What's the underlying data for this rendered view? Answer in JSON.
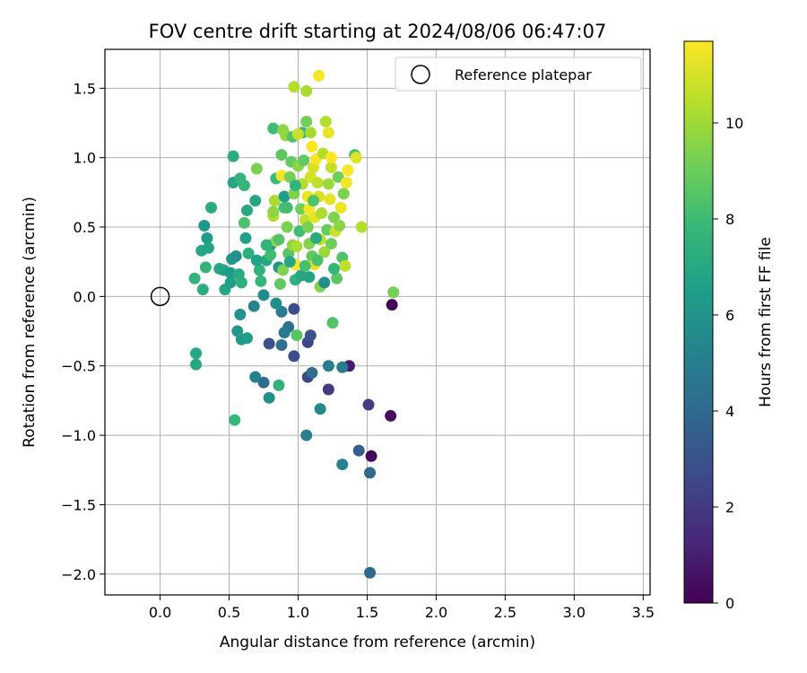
{
  "chart_data": {
    "type": "scatter",
    "title": "FOV centre drift starting at 2024/08/06 06:47:07",
    "xlabel": "Angular distance from reference (arcmin)",
    "ylabel": "Rotation from reference (arcmin)",
    "xlim": [
      -0.4,
      3.55
    ],
    "ylim": [
      -2.15,
      1.78
    ],
    "xticks": [
      "0.0",
      "0.5",
      "1.0",
      "1.5",
      "2.0",
      "2.5",
      "3.0",
      "3.5"
    ],
    "xtick_values": [
      0,
      0.5,
      1,
      1.5,
      2,
      2.5,
      3,
      3.5
    ],
    "yticks": [
      "1.5",
      "1.0",
      "0.5",
      "0.0",
      "−0.5",
      "−1.0",
      "−1.5",
      "−2.0"
    ],
    "ytick_values": [
      1.5,
      1.0,
      0.5,
      0.0,
      -0.5,
      -1.0,
      -1.5,
      -2.0
    ],
    "grid": true,
    "legend": {
      "label": "Reference platepar",
      "position": "top-right"
    },
    "reference_point": {
      "x": 0.0,
      "y": 0.0
    },
    "colorbar": {
      "label": "Hours from first FF file",
      "min": 0,
      "max": 11.7,
      "ticks": [
        "0",
        "2",
        "4",
        "6",
        "8",
        "10"
      ],
      "tick_values": [
        0,
        2,
        4,
        6,
        8,
        10
      ],
      "colormap": "viridis"
    },
    "points": [
      {
        "x": 1.53,
        "y": -1.15,
        "h": 0.2
      },
      {
        "x": 1.68,
        "y": -0.06,
        "h": 0.1
      },
      {
        "x": 1.67,
        "y": -0.86,
        "h": 0.4
      },
      {
        "x": 1.37,
        "y": -0.5,
        "h": 0.9
      },
      {
        "x": 1.51,
        "y": -0.78,
        "h": 2.1
      },
      {
        "x": 1.22,
        "y": -0.67,
        "h": 2.0
      },
      {
        "x": 1.07,
        "y": -0.58,
        "h": 2.5
      },
      {
        "x": 0.97,
        "y": -0.43,
        "h": 2.9
      },
      {
        "x": 1.07,
        "y": -0.33,
        "h": 2.5
      },
      {
        "x": 1.09,
        "y": -0.28,
        "h": 3.0
      },
      {
        "x": 0.79,
        "y": -0.34,
        "h": 2.9
      },
      {
        "x": 0.97,
        "y": -0.09,
        "h": 2.9
      },
      {
        "x": 1.44,
        "y": -1.11,
        "h": 3.5
      },
      {
        "x": 1.52,
        "y": -1.27,
        "h": 3.9
      },
      {
        "x": 1.52,
        "y": -1.99,
        "h": 3.9
      },
      {
        "x": 1.1,
        "y": -0.55,
        "h": 4.1
      },
      {
        "x": 0.88,
        "y": -0.35,
        "h": 4.3
      },
      {
        "x": 0.75,
        "y": -0.62,
        "h": 4.1
      },
      {
        "x": 1.32,
        "y": -0.51,
        "h": 4.9
      },
      {
        "x": 1.22,
        "y": -0.5,
        "h": 5.0
      },
      {
        "x": 1.06,
        "y": -1.0,
        "h": 5.0
      },
      {
        "x": 1.32,
        "y": -1.21,
        "h": 5.2
      },
      {
        "x": 1.16,
        "y": -0.81,
        "h": 5.5
      },
      {
        "x": 0.69,
        "y": -0.58,
        "h": 5.1
      },
      {
        "x": 0.93,
        "y": -0.22,
        "h": 4.4
      },
      {
        "x": 0.9,
        "y": -0.26,
        "h": 4.8
      },
      {
        "x": 0.88,
        "y": -0.11,
        "h": 4.9
      },
      {
        "x": 0.84,
        "y": -0.05,
        "h": 5.6
      },
      {
        "x": 0.68,
        "y": -0.07,
        "h": 5.3
      },
      {
        "x": 0.79,
        "y": -0.73,
        "h": 5.9
      },
      {
        "x": 0.75,
        "y": 0.01,
        "h": 5.7
      },
      {
        "x": 0.58,
        "y": -0.13,
        "h": 6.0
      },
      {
        "x": 0.56,
        "y": -0.25,
        "h": 6.2
      },
      {
        "x": 0.59,
        "y": -0.31,
        "h": 6.4
      },
      {
        "x": 0.63,
        "y": -0.3,
        "h": 6.5
      },
      {
        "x": 0.86,
        "y": -0.64,
        "h": 7.6
      },
      {
        "x": 0.54,
        "y": -0.89,
        "h": 7.8
      },
      {
        "x": 0.26,
        "y": -0.41,
        "h": 6.9
      },
      {
        "x": 0.26,
        "y": -0.49,
        "h": 7.0
      },
      {
        "x": 0.32,
        "y": 0.51,
        "h": 6.2
      },
      {
        "x": 0.34,
        "y": 0.42,
        "h": 6.4
      },
      {
        "x": 0.3,
        "y": 0.33,
        "h": 7.0
      },
      {
        "x": 0.35,
        "y": 0.35,
        "h": 6.8
      },
      {
        "x": 0.37,
        "y": 0.64,
        "h": 7.2
      },
      {
        "x": 0.33,
        "y": 0.21,
        "h": 7.6
      },
      {
        "x": 0.25,
        "y": 0.13,
        "h": 7.7
      },
      {
        "x": 0.31,
        "y": 0.05,
        "h": 7.3
      },
      {
        "x": 0.43,
        "y": 0.2,
        "h": 7.0
      },
      {
        "x": 0.46,
        "y": 0.19,
        "h": 6.8
      },
      {
        "x": 0.47,
        "y": 0.05,
        "h": 6.9
      },
      {
        "x": 0.51,
        "y": 0.1,
        "h": 6.6
      },
      {
        "x": 0.51,
        "y": 0.17,
        "h": 6.4
      },
      {
        "x": 0.52,
        "y": 0.27,
        "h": 6.2
      },
      {
        "x": 0.55,
        "y": 0.29,
        "h": 6.0
      },
      {
        "x": 0.57,
        "y": 0.16,
        "h": 7.1
      },
      {
        "x": 0.59,
        "y": 0.1,
        "h": 7.4
      },
      {
        "x": 0.53,
        "y": 0.82,
        "h": 6.9
      },
      {
        "x": 0.53,
        "y": 1.01,
        "h": 7.2
      },
      {
        "x": 0.58,
        "y": 0.85,
        "h": 7.6
      },
      {
        "x": 0.61,
        "y": 0.8,
        "h": 7.8
      },
      {
        "x": 0.61,
        "y": 0.53,
        "h": 8.3
      },
      {
        "x": 0.63,
        "y": 0.62,
        "h": 7.0
      },
      {
        "x": 0.62,
        "y": 0.42,
        "h": 6.6
      },
      {
        "x": 0.64,
        "y": 0.31,
        "h": 7.4
      },
      {
        "x": 0.69,
        "y": 0.69,
        "h": 6.9
      },
      {
        "x": 0.7,
        "y": 0.92,
        "h": 9.3
      },
      {
        "x": 0.72,
        "y": 0.19,
        "h": 7.5
      },
      {
        "x": 0.73,
        "y": 0.11,
        "h": 7.8
      },
      {
        "x": 0.77,
        "y": 0.26,
        "h": 7.0
      },
      {
        "x": 0.8,
        "y": 0.37,
        "h": 6.2
      },
      {
        "x": 0.8,
        "y": 0.3,
        "h": 8.1
      },
      {
        "x": 0.82,
        "y": 0.58,
        "h": 10.3
      },
      {
        "x": 0.82,
        "y": 0.61,
        "h": 9.7
      },
      {
        "x": 0.82,
        "y": 1.21,
        "h": 8.0
      },
      {
        "x": 0.83,
        "y": 0.69,
        "h": 10.2
      },
      {
        "x": 0.84,
        "y": 0.4,
        "h": 9.8
      },
      {
        "x": 0.84,
        "y": 0.85,
        "h": 7.9
      },
      {
        "x": 0.86,
        "y": 0.21,
        "h": 6.0
      },
      {
        "x": 0.86,
        "y": 0.41,
        "h": 8.5
      },
      {
        "x": 0.87,
        "y": 0.09,
        "h": 8.8
      },
      {
        "x": 0.88,
        "y": 0.87,
        "h": 11.5
      },
      {
        "x": 0.89,
        "y": 1.2,
        "h": 9.6
      },
      {
        "x": 0.89,
        "y": 0.19,
        "h": 9.4
      },
      {
        "x": 0.9,
        "y": 0.72,
        "h": 6.5
      },
      {
        "x": 0.91,
        "y": 1.16,
        "h": 9.8
      },
      {
        "x": 0.92,
        "y": 0.64,
        "h": 8.2
      },
      {
        "x": 0.92,
        "y": 0.5,
        "h": 9.3
      },
      {
        "x": 0.93,
        "y": 0.31,
        "h": 8.6
      },
      {
        "x": 0.94,
        "y": 0.86,
        "h": 9.2
      },
      {
        "x": 0.95,
        "y": 0.97,
        "h": 8.9
      },
      {
        "x": 0.96,
        "y": 1.15,
        "h": 8.5
      },
      {
        "x": 0.96,
        "y": 0.37,
        "h": 9.7
      },
      {
        "x": 0.97,
        "y": 1.51,
        "h": 10.4
      },
      {
        "x": 0.97,
        "y": 0.74,
        "h": 9.4
      },
      {
        "x": 0.98,
        "y": 0.12,
        "h": 7.5
      },
      {
        "x": 0.98,
        "y": 0.23,
        "h": 11.6
      },
      {
        "x": 0.99,
        "y": 0.36,
        "h": 10.2
      },
      {
        "x": 0.99,
        "y": -0.28,
        "h": 8.6
      },
      {
        "x": 1.0,
        "y": 0.94,
        "h": 9.6
      },
      {
        "x": 1.01,
        "y": 0.47,
        "h": 8.0
      },
      {
        "x": 1.02,
        "y": 0.63,
        "h": 9.1
      },
      {
        "x": 1.02,
        "y": 0.15,
        "h": 6.9
      },
      {
        "x": 1.03,
        "y": 1.18,
        "h": 7.5
      },
      {
        "x": 1.03,
        "y": 0.81,
        "h": 10.3
      },
      {
        "x": 1.04,
        "y": 0.98,
        "h": 8.8
      },
      {
        "x": 1.05,
        "y": 0.55,
        "h": 10.6
      },
      {
        "x": 1.06,
        "y": 1.48,
        "h": 10.2
      },
      {
        "x": 1.06,
        "y": 1.26,
        "h": 9.2
      },
      {
        "x": 1.07,
        "y": 0.72,
        "h": 11.4
      },
      {
        "x": 1.07,
        "y": 0.5,
        "h": 9.3
      },
      {
        "x": 1.08,
        "y": 0.63,
        "h": 11.5
      },
      {
        "x": 1.08,
        "y": 0.38,
        "h": 9.5
      },
      {
        "x": 1.09,
        "y": 0.86,
        "h": 10.9
      },
      {
        "x": 1.09,
        "y": 1.18,
        "h": 10.1
      },
      {
        "x": 1.1,
        "y": 0.29,
        "h": 8.8
      },
      {
        "x": 1.1,
        "y": 1.08,
        "h": 11.7
      },
      {
        "x": 1.11,
        "y": 0.93,
        "h": 11.0
      },
      {
        "x": 1.12,
        "y": 0.57,
        "h": 11.2
      },
      {
        "x": 1.12,
        "y": 0.23,
        "h": 11.2
      },
      {
        "x": 1.13,
        "y": 0.99,
        "h": 11.6
      },
      {
        "x": 1.14,
        "y": 0.82,
        "h": 10.6
      },
      {
        "x": 1.15,
        "y": 1.59,
        "h": 11.6
      },
      {
        "x": 1.15,
        "y": 0.72,
        "h": 11.0
      },
      {
        "x": 1.16,
        "y": 0.41,
        "h": 10.4
      },
      {
        "x": 1.16,
        "y": 0.07,
        "h": 9.4
      },
      {
        "x": 1.17,
        "y": 0.6,
        "h": 10.2
      },
      {
        "x": 1.18,
        "y": 1.03,
        "h": 10.4
      },
      {
        "x": 1.19,
        "y": 0.32,
        "h": 9.9
      },
      {
        "x": 1.2,
        "y": 1.26,
        "h": 10.3
      },
      {
        "x": 1.21,
        "y": 0.48,
        "h": 8.9
      },
      {
        "x": 1.22,
        "y": 0.81,
        "h": 9.9
      },
      {
        "x": 1.22,
        "y": 1.18,
        "h": 11.3
      },
      {
        "x": 1.23,
        "y": 0.7,
        "h": 11.3
      },
      {
        "x": 1.24,
        "y": 0.93,
        "h": 10.7
      },
      {
        "x": 1.24,
        "y": 0.38,
        "h": 9.1
      },
      {
        "x": 1.25,
        "y": -0.19,
        "h": 8.5
      },
      {
        "x": 1.26,
        "y": 0.57,
        "h": 9.4
      },
      {
        "x": 1.27,
        "y": 0.47,
        "h": 10.8
      },
      {
        "x": 1.28,
        "y": 0.13,
        "h": 8.7
      },
      {
        "x": 1.29,
        "y": 0.86,
        "h": 9.1
      },
      {
        "x": 1.3,
        "y": 0.51,
        "h": 9.6
      },
      {
        "x": 1.31,
        "y": 0.64,
        "h": 11.4
      },
      {
        "x": 1.32,
        "y": 0.28,
        "h": 8.4
      },
      {
        "x": 1.33,
        "y": 0.74,
        "h": 9.4
      },
      {
        "x": 1.34,
        "y": 0.22,
        "h": 10.6
      },
      {
        "x": 1.35,
        "y": 0.82,
        "h": 11.5
      },
      {
        "x": 1.36,
        "y": 0.91,
        "h": 11.6
      },
      {
        "x": 1.41,
        "y": 1.02,
        "h": 8.3
      },
      {
        "x": 1.42,
        "y": 1.0,
        "h": 11.1
      },
      {
        "x": 1.46,
        "y": 0.5,
        "h": 10.4
      },
      {
        "x": 1.69,
        "y": 0.03,
        "h": 9.2
      },
      {
        "x": 1.24,
        "y": 1.0,
        "h": 11.7
      },
      {
        "x": 1.11,
        "y": 0.69,
        "h": 8.4
      },
      {
        "x": 1.05,
        "y": 0.22,
        "h": 8.2
      },
      {
        "x": 0.98,
        "y": 0.8,
        "h": 7.6
      },
      {
        "x": 1.13,
        "y": 0.42,
        "h": 7.1
      },
      {
        "x": 0.94,
        "y": 0.25,
        "h": 6.9
      },
      {
        "x": 1.19,
        "y": 0.1,
        "h": 5.8
      },
      {
        "x": 1.08,
        "y": 0.14,
        "h": 6.8
      },
      {
        "x": 0.9,
        "y": 0.64,
        "h": 8.1
      },
      {
        "x": 1.0,
        "y": 1.17,
        "h": 10.8
      },
      {
        "x": 0.88,
        "y": 1.02,
        "h": 8.7
      },
      {
        "x": 1.14,
        "y": 0.26,
        "h": 8.3
      },
      {
        "x": 1.26,
        "y": 0.2,
        "h": 7.7
      },
      {
        "x": 0.77,
        "y": 0.37,
        "h": 7.6
      },
      {
        "x": 0.7,
        "y": 0.26,
        "h": 6.7
      }
    ]
  }
}
